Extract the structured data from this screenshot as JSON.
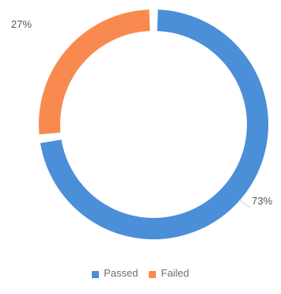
{
  "chart_data": {
    "type": "pie",
    "variant": "donut",
    "title": "",
    "categories": [
      "Passed",
      "Failed"
    ],
    "values": [
      73,
      27
    ],
    "labels": [
      "73%",
      "27%"
    ],
    "colors": [
      "#4a8fd8",
      "#f88a4f"
    ],
    "legend_position": "bottom"
  },
  "legend": {
    "passed_label": "Passed",
    "failed_label": "Failed"
  }
}
